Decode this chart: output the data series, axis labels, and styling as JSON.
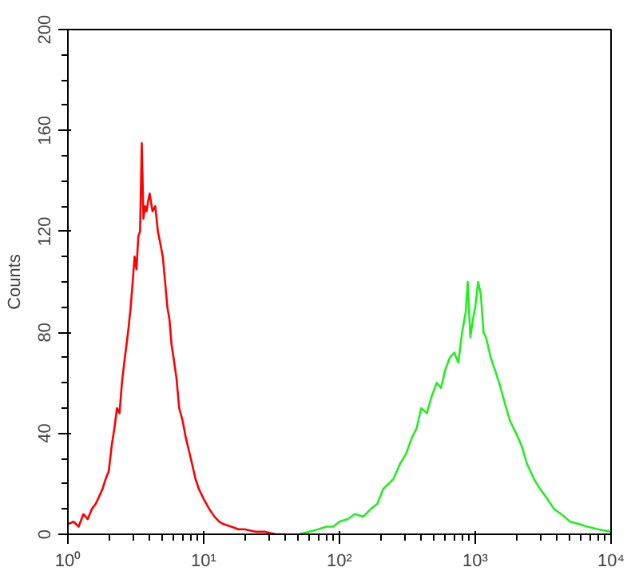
{
  "chart_data": {
    "type": "line",
    "ylabel": "Counts",
    "log": "x",
    "grid": false,
    "xlim": [
      1,
      10000
    ],
    "xticks": [
      {
        "value": 1,
        "label": "10⁰"
      },
      {
        "value": 10,
        "label": "10¹"
      },
      {
        "value": 100,
        "label": "10²"
      },
      {
        "value": 1000,
        "label": "10³"
      },
      {
        "value": 10000,
        "label": "10⁴"
      }
    ],
    "ylim": [
      0,
      200
    ],
    "yticks": [
      0,
      40,
      80,
      120,
      160,
      200
    ],
    "series": [
      {
        "color": "#ff0000",
        "x": [
          1,
          1.1,
          1.2,
          1.3,
          1.4,
          1.5,
          1.6,
          1.7,
          1.8,
          1.9,
          2,
          2.1,
          2.2,
          2.3,
          2.4,
          2.5,
          2.6,
          2.7,
          2.8,
          2.9,
          3,
          3.1,
          3.2,
          3.3,
          3.4,
          3.5,
          3.6,
          3.7,
          3.8,
          3.9,
          4,
          4.2,
          4.4,
          4.6,
          4.8,
          5,
          5.2,
          5.4,
          5.6,
          5.8,
          6,
          6.3,
          6.6,
          7,
          7.4,
          7.8,
          8.2,
          8.7,
          9.2,
          10,
          11,
          12,
          13,
          14,
          16,
          18,
          20,
          24,
          28,
          34,
          40
        ],
        "values": [
          4,
          5,
          3,
          8,
          6,
          10,
          12,
          15,
          18,
          22,
          25,
          35,
          42,
          50,
          48,
          60,
          68,
          75,
          82,
          90,
          100,
          110,
          105,
          118,
          120,
          155,
          125,
          130,
          128,
          132,
          135,
          128,
          130,
          120,
          115,
          110,
          100,
          90,
          85,
          75,
          70,
          62,
          50,
          45,
          38,
          33,
          28,
          22,
          18,
          14,
          10,
          7,
          5,
          4,
          3,
          2,
          2,
          1,
          1,
          0,
          0
        ]
      },
      {
        "color": "#22ee22",
        "x": [
          50,
          60,
          70,
          80,
          90,
          100,
          115,
          130,
          150,
          170,
          190,
          210,
          230,
          250,
          280,
          310,
          340,
          370,
          400,
          440,
          480,
          520,
          560,
          600,
          650,
          700,
          750,
          800,
          850,
          880,
          920,
          960,
          1000,
          1050,
          1100,
          1150,
          1200,
          1300,
          1400,
          1500,
          1650,
          1800,
          2000,
          2200,
          2400,
          2700,
          3000,
          3400,
          3800,
          4300,
          5000,
          5800,
          6700,
          8000,
          10000
        ],
        "values": [
          0,
          1,
          2,
          3,
          3,
          5,
          6,
          8,
          7,
          10,
          12,
          18,
          20,
          22,
          28,
          32,
          38,
          42,
          50,
          48,
          55,
          60,
          58,
          65,
          70,
          72,
          68,
          80,
          88,
          100,
          78,
          85,
          90,
          100,
          95,
          80,
          78,
          70,
          65,
          60,
          52,
          45,
          40,
          35,
          28,
          22,
          18,
          14,
          10,
          8,
          5,
          4,
          3,
          2,
          1
        ]
      }
    ]
  }
}
